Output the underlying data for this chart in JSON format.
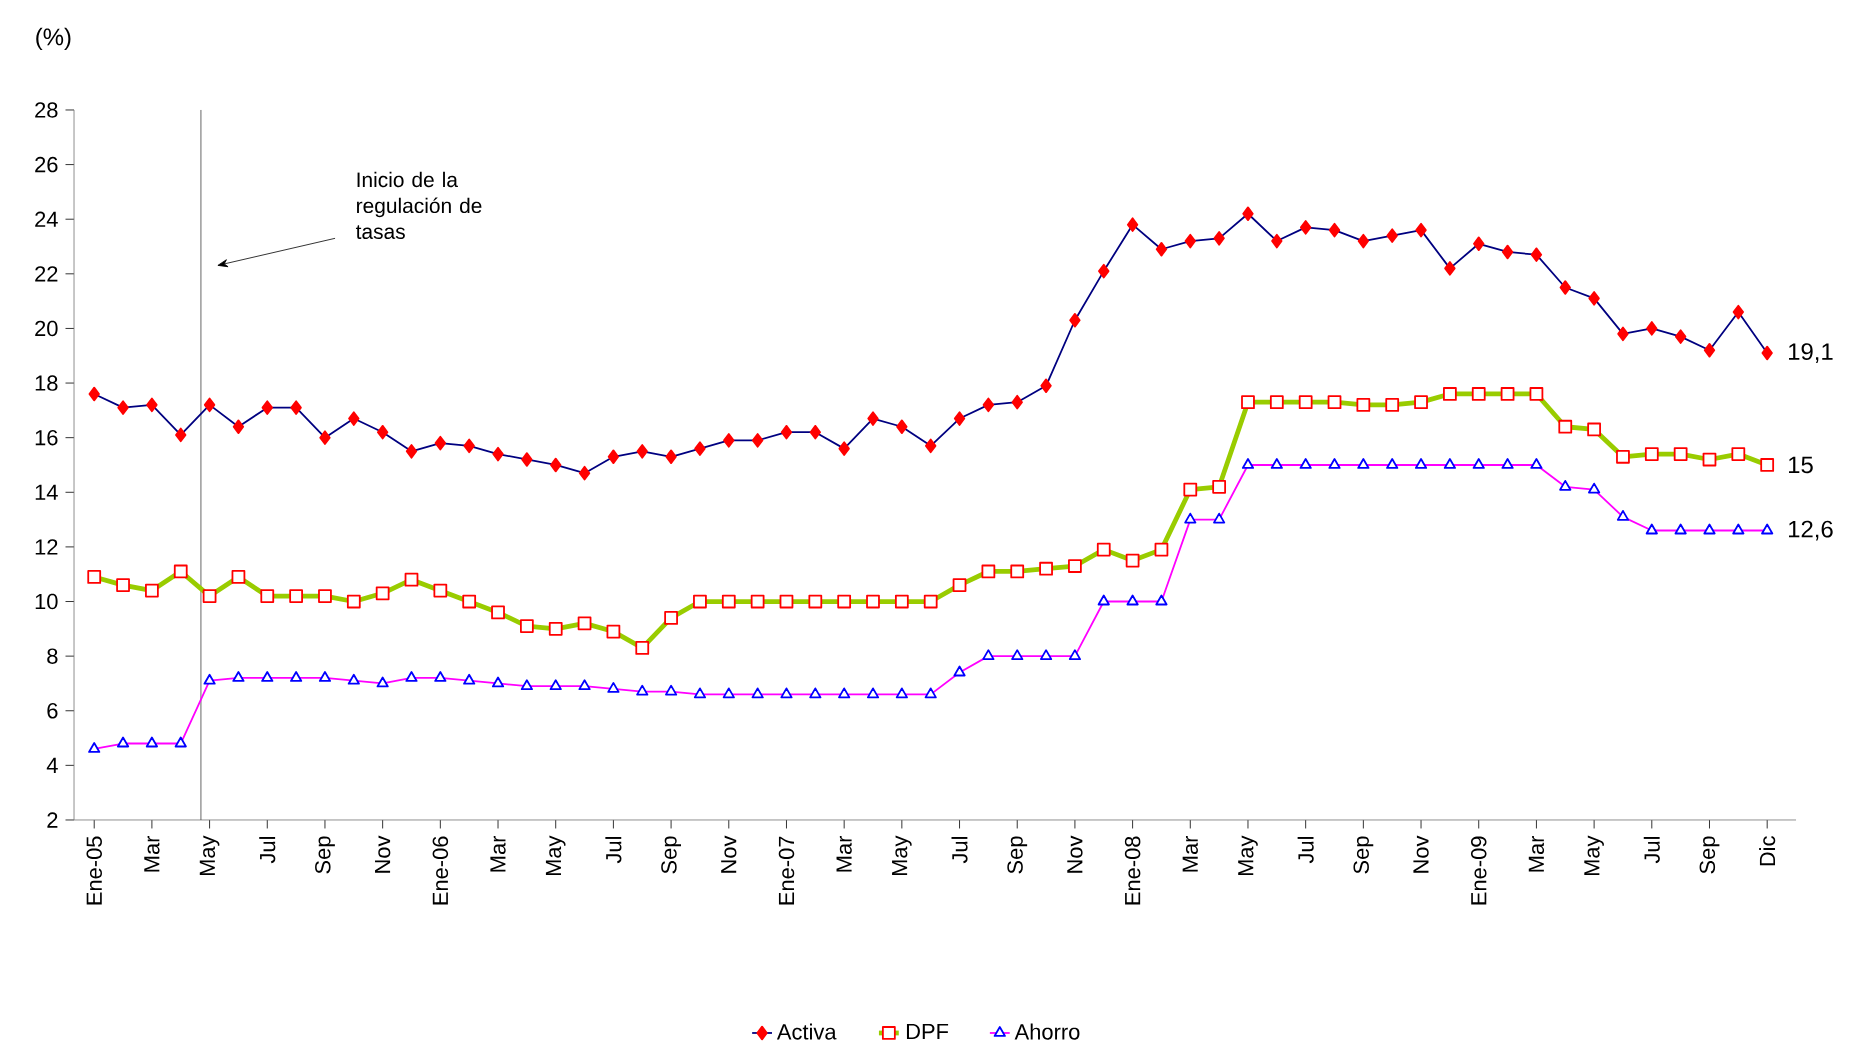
{
  "chart_data": {
    "type": "line",
    "ylabel": "(%)",
    "categories": [
      "Ene-05",
      null,
      "Mar",
      null,
      "May",
      null,
      "Jul",
      null,
      "Sep",
      null,
      "Nov",
      null,
      "Ene-06",
      null,
      "Mar",
      null,
      "May",
      null,
      "Jul",
      null,
      "Sep",
      null,
      "Nov",
      null,
      "Ene-07",
      null,
      "Mar",
      null,
      "May",
      null,
      "Jul",
      null,
      "Sep",
      null,
      "Nov",
      null,
      "Ene-08",
      null,
      "Mar",
      null,
      "May",
      null,
      "Jul",
      null,
      "Sep",
      null,
      "Nov",
      null,
      "Ene-09",
      null,
      "Mar",
      null,
      "May",
      null,
      "Jul",
      null,
      "Sep",
      null,
      "Dic"
    ],
    "series": [
      {
        "name": "Activa",
        "color": "#000080",
        "marker": "diamond",
        "values": [
          17.6,
          17.1,
          17.2,
          16.1,
          17.2,
          16.4,
          17.1,
          17.1,
          16.0,
          16.7,
          16.2,
          15.5,
          15.8,
          15.7,
          15.4,
          15.2,
          15.0,
          14.7,
          15.3,
          15.5,
          15.3,
          15.6,
          15.9,
          15.9,
          16.2,
          16.2,
          15.6,
          16.7,
          16.4,
          15.7,
          16.7,
          17.2,
          17.3,
          17.9,
          20.3,
          22.1,
          23.8,
          22.9,
          23.2,
          23.3,
          24.2,
          23.2,
          23.7,
          23.6,
          23.2,
          23.4,
          23.6,
          22.2,
          23.1,
          22.8,
          22.7,
          21.5,
          21.1,
          19.8,
          20.0,
          19.7,
          19.2,
          20.6,
          19.1
        ]
      },
      {
        "name": "DPF",
        "color": "#99cc00",
        "marker": "square",
        "values": [
          10.9,
          10.6,
          10.4,
          11.1,
          10.2,
          10.9,
          10.2,
          10.2,
          10.2,
          10.0,
          10.3,
          10.8,
          10.4,
          10.0,
          9.6,
          9.1,
          9.0,
          9.2,
          8.9,
          8.3,
          9.4,
          10.0,
          10.0,
          10.0,
          10.0,
          10.0,
          10.0,
          10.0,
          10.0,
          10.0,
          10.6,
          11.1,
          11.1,
          11.2,
          11.3,
          11.9,
          11.5,
          11.9,
          14.1,
          14.2,
          17.3,
          17.3,
          17.3,
          17.3,
          17.2,
          17.2,
          17.3,
          17.6,
          17.6,
          17.6,
          17.6,
          16.4,
          16.3,
          15.3,
          15.4,
          15.4,
          15.2,
          15.4,
          15.0
        ]
      },
      {
        "name": "Ahorro",
        "color": "#ff00ff",
        "marker": "triangle",
        "values": [
          4.6,
          4.8,
          4.8,
          4.8,
          7.1,
          7.2,
          7.2,
          7.2,
          7.2,
          7.1,
          7.0,
          7.2,
          7.2,
          7.1,
          7.0,
          6.9,
          6.9,
          6.9,
          6.8,
          6.7,
          6.7,
          6.6,
          6.6,
          6.6,
          6.6,
          6.6,
          6.6,
          6.6,
          6.6,
          6.6,
          7.4,
          8.0,
          8.0,
          8.0,
          8.0,
          10.0,
          10.0,
          10.0,
          13.0,
          13.0,
          15.0,
          15.0,
          15.0,
          15.0,
          15.0,
          15.0,
          15.0,
          15.0,
          15.0,
          15.0,
          15.0,
          14.2,
          14.1,
          13.1,
          12.6,
          12.6,
          12.6,
          12.6,
          12.6
        ]
      }
    ],
    "ylim": [
      2,
      28
    ],
    "yticks": [
      2,
      4,
      6,
      8,
      10,
      12,
      14,
      16,
      18,
      20,
      22,
      24,
      26,
      28
    ],
    "legend": "bottom",
    "annotations": [
      "Inicio de la regulación de tasas",
      {
        "text": "19,1",
        "x": "Dic",
        "y": 19.1
      },
      {
        "text": "15",
        "x": "Dic",
        "y": 15
      },
      {
        "text": "12,6",
        "x": "Dic",
        "y": 12.6
      }
    ]
  }
}
